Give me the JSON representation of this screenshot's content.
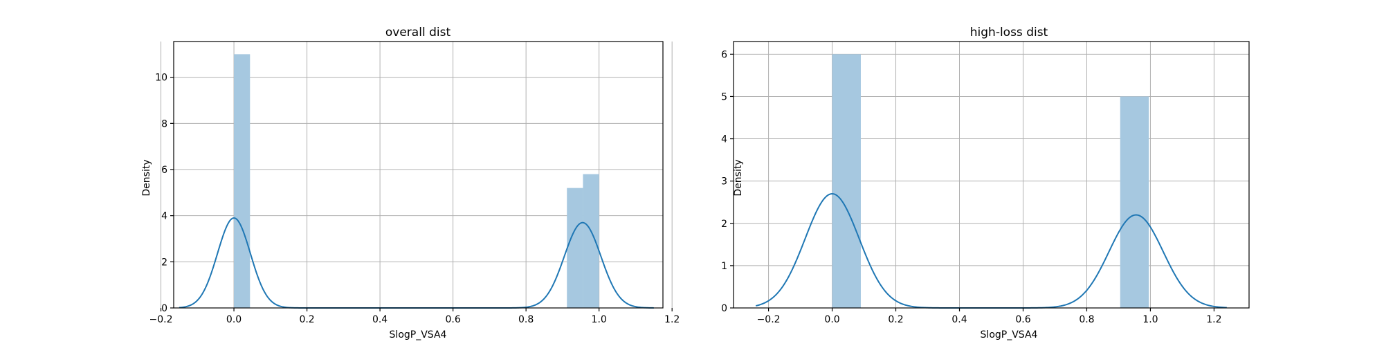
{
  "chart_data": [
    {
      "type": "bar",
      "title": "overall dist",
      "xlabel": "SlogP_VSA4",
      "ylabel": "Density",
      "xlim": [
        -0.165,
        1.175
      ],
      "ylim": [
        0,
        11.55
      ],
      "xticks": [
        -0.2,
        0.0,
        0.2,
        0.4,
        0.6,
        0.8,
        1.0,
        1.2
      ],
      "xtick_labels": [
        "−0.2",
        "0.0",
        "0.2",
        "0.4",
        "0.6",
        "0.8",
        "1.0",
        "1.2"
      ],
      "yticks": [
        0,
        2,
        4,
        6,
        8,
        10
      ],
      "ytick_labels": [
        "0",
        "2",
        "4",
        "6",
        "8",
        "10"
      ],
      "grid": true,
      "hist_color": "#a6c8e0",
      "kde_color": "#1f77b4",
      "histogram": [
        {
          "x0": 0.0,
          "x1": 0.044,
          "density": 11.0
        },
        {
          "x0": 0.912,
          "x1": 0.956,
          "density": 5.2
        },
        {
          "x0": 0.956,
          "x1": 1.0,
          "density": 5.8
        }
      ],
      "kde": {
        "x_range": [
          -0.15,
          1.15
        ],
        "components": [
          {
            "mean": 0.0,
            "sd": 0.045,
            "peak": 3.9
          },
          {
            "mean": 0.955,
            "sd": 0.05,
            "peak": 3.7
          }
        ]
      }
    },
    {
      "type": "bar",
      "title": "high-loss dist",
      "xlabel": "SlogP_VSA4",
      "ylabel": "Density",
      "xlim": [
        -0.31,
        1.31
      ],
      "ylim": [
        0,
        6.3
      ],
      "xticks": [
        -0.2,
        0.0,
        0.2,
        0.4,
        0.6,
        0.8,
        1.0,
        1.2
      ],
      "xtick_labels": [
        "−0.2",
        "0.0",
        "0.2",
        "0.4",
        "0.6",
        "0.8",
        "1.0",
        "1.2"
      ],
      "yticks": [
        0,
        1,
        2,
        3,
        4,
        5,
        6
      ],
      "ytick_labels": [
        "0",
        "1",
        "2",
        "3",
        "4",
        "5",
        "6"
      ],
      "grid": true,
      "hist_color": "#a6c8e0",
      "kde_color": "#1f77b4",
      "histogram": [
        {
          "x0": 0.0,
          "x1": 0.09,
          "density": 6.0
        },
        {
          "x0": 0.905,
          "x1": 0.995,
          "density": 5.0
        }
      ],
      "kde": {
        "x_range": [
          -0.24,
          1.24
        ],
        "components": [
          {
            "mean": 0.0,
            "sd": 0.085,
            "peak": 2.7
          },
          {
            "mean": 0.955,
            "sd": 0.085,
            "peak": 2.2
          }
        ]
      }
    }
  ]
}
